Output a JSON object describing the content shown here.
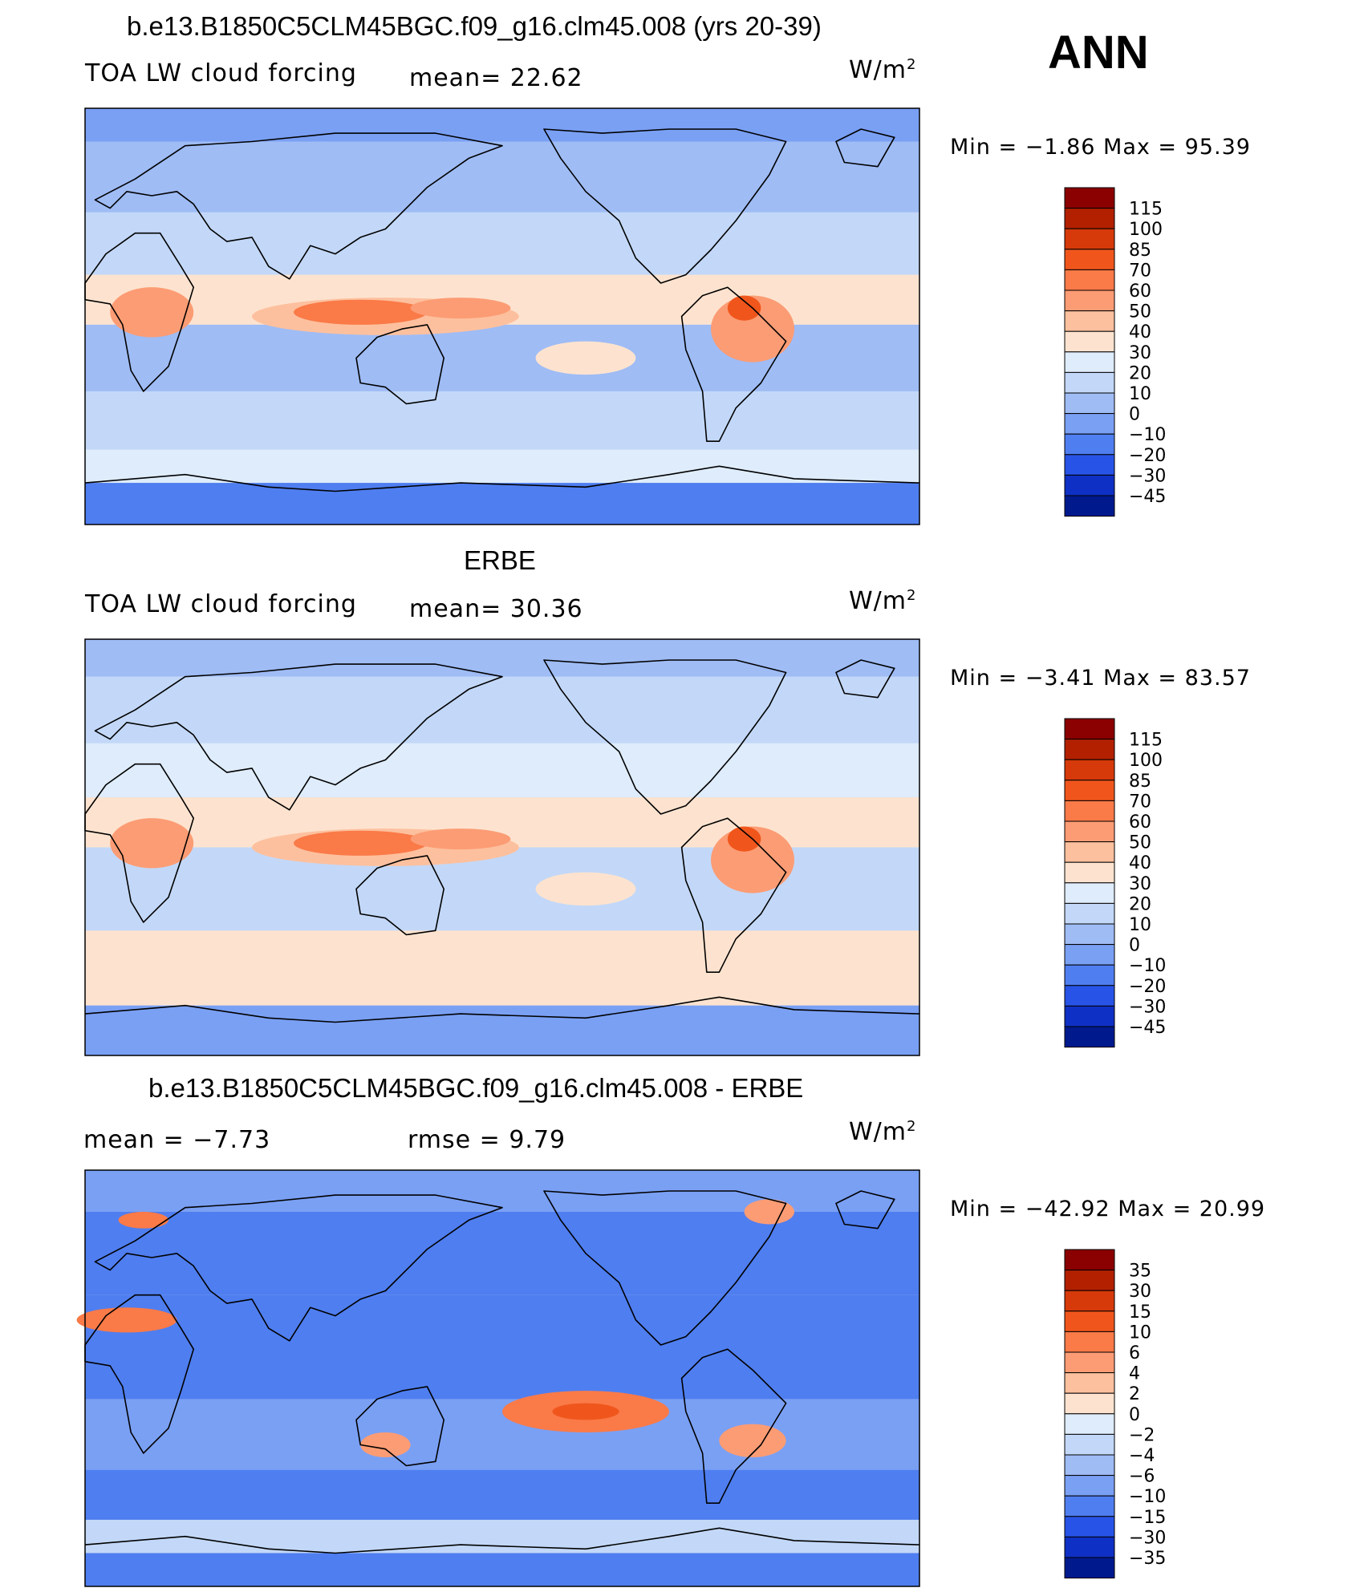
{
  "header": {
    "panel1_title": "b.e13.B1850C5CLM45BGC.f09_g16.clm45.008 (yrs 20-39)",
    "season": "ANN",
    "panel2_title": "ERBE",
    "panel3_title": "b.e13.B1850C5CLM45BGC.f09_g16.clm45.008 - ERBE"
  },
  "panels": [
    {
      "variable": "TOA LW cloud forcing",
      "stat1": "mean=  22.62",
      "stat2": "",
      "units_base": "W/m",
      "units_exp": "2",
      "minmax": "Min  =   −1.86  Max  =    95.39",
      "levels": [
        "115",
        "100",
        "85",
        "70",
        "60",
        "50",
        "40",
        "30",
        "20",
        "10",
        "0",
        "−10",
        "−20",
        "−30",
        "−45"
      ],
      "colors": [
        "#8b0000",
        "#b22000",
        "#d63a0a",
        "#f0561c",
        "#fa7a48",
        "#fc9c74",
        "#fdc09e",
        "#fde3cf",
        "#deecfb",
        "#c3d8f8",
        "#9fbcf5",
        "#7aa0f4",
        "#4f7ef0",
        "#2754e6",
        "#0f30c4",
        "#001a8e"
      ]
    },
    {
      "variable": "TOA LW cloud forcing",
      "stat1": "mean=  30.36",
      "stat2": "",
      "units_base": "W/m",
      "units_exp": "2",
      "minmax": "Min  =   −3.41  Max  =    83.57",
      "levels": [
        "115",
        "100",
        "85",
        "70",
        "60",
        "50",
        "40",
        "30",
        "20",
        "10",
        "0",
        "−10",
        "−20",
        "−30",
        "−45"
      ],
      "colors": [
        "#8b0000",
        "#b22000",
        "#d63a0a",
        "#f0561c",
        "#fa7a48",
        "#fc9c74",
        "#fdc09e",
        "#fde3cf",
        "#deecfb",
        "#c3d8f8",
        "#9fbcf5",
        "#7aa0f4",
        "#4f7ef0",
        "#2754e6",
        "#0f30c4",
        "#001a8e"
      ]
    },
    {
      "variable": "",
      "stat1": "mean  =    −7.73",
      "stat2": "rmse  =     9.79",
      "units_base": "W/m",
      "units_exp": "2",
      "minmax": "Min  = −42.92  Max  =    20.99",
      "levels": [
        "35",
        "30",
        "15",
        "10",
        "6",
        "4",
        "2",
        "0",
        "−2",
        "−4",
        "−6",
        "−10",
        "−15",
        "−30",
        "−35"
      ],
      "colors": [
        "#8b0000",
        "#b22000",
        "#d63a0a",
        "#f0561c",
        "#fa7a48",
        "#fc9c74",
        "#fdc09e",
        "#fde3cf",
        "#deecfb",
        "#c3d8f8",
        "#9fbcf5",
        "#7aa0f4",
        "#4f7ef0",
        "#2754e6",
        "#0f30c4",
        "#001a8e"
      ]
    }
  ]
}
